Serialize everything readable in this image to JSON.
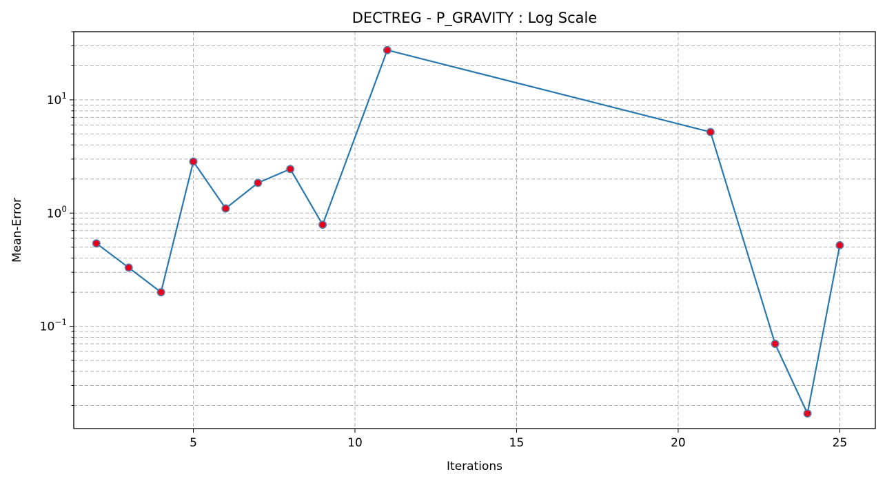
{
  "chart_data": {
    "type": "line",
    "title": "DECTREG - P_GRAVITY : Log Scale",
    "xlabel": "Iterations",
    "ylabel": "Mean-Error",
    "xscale": "linear",
    "yscale": "log",
    "xlim": [
      1.3,
      26.1
    ],
    "ylim": [
      0.0125,
      40
    ],
    "grid": true,
    "grid_style": "dashed, major and minor",
    "xticks": [
      5,
      10,
      15,
      20,
      25
    ],
    "yticks": [
      {
        "value": 0.1,
        "base": "10",
        "exp": "−1"
      },
      {
        "value": 1,
        "base": "10",
        "exp": "0"
      },
      {
        "value": 10,
        "base": "10",
        "exp": "1"
      }
    ],
    "line_color": "#2878ae",
    "marker_face_color": "#e8001c",
    "marker_edge_color": "#5b7fa6",
    "series": [
      {
        "x": [
          2,
          3,
          4,
          5,
          6,
          7,
          8,
          9,
          11,
          21,
          23,
          24,
          25
        ],
        "y": [
          0.54,
          0.33,
          0.2,
          2.85,
          1.1,
          1.85,
          2.45,
          0.79,
          27.5,
          5.2,
          0.07,
          0.017,
          0.52
        ]
      }
    ]
  }
}
